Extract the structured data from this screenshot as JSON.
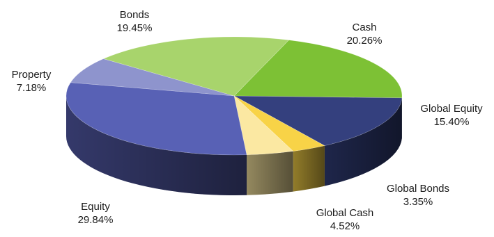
{
  "chart_data": {
    "type": "pie",
    "style": "3d-exploded-none",
    "slices": [
      {
        "label": "Cash",
        "value": "20.26%",
        "pct": 20.26,
        "color": "#7dc135"
      },
      {
        "label": "Global Equity",
        "value": "15.40%",
        "pct": 15.4,
        "color": "#34407e"
      },
      {
        "label": "Global Bonds",
        "value": "3.35%",
        "pct": 3.35,
        "color": "#f8d347"
      },
      {
        "label": "Global Cash",
        "value": "4.52%",
        "pct": 4.52,
        "color": "#fbe8a2"
      },
      {
        "label": "Equity",
        "value": "29.84%",
        "pct": 29.84,
        "color": "#5861b5"
      },
      {
        "label": "Property",
        "value": "7.18%",
        "pct": 7.18,
        "color": "#8e94cd"
      },
      {
        "label": "Bonds",
        "value": "19.45%",
        "pct": 19.45,
        "color": "#a8d46c"
      }
    ]
  }
}
